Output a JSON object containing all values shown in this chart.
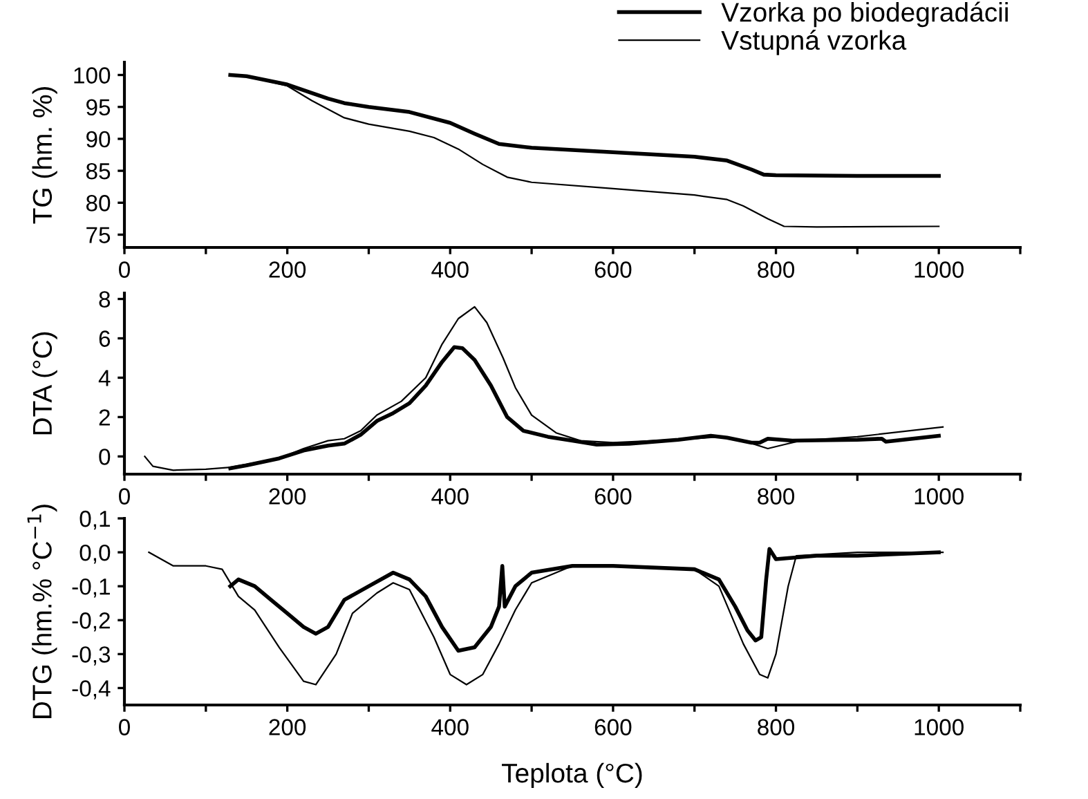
{
  "chart_data": [
    {
      "type": "line",
      "ylabel": "TG (hm. %)",
      "legend": "top right",
      "xlim": [
        0,
        1100
      ],
      "xticks": [
        0,
        {
          "value": 100,
          "label": null
        },
        200,
        {
          "value": 300,
          "label": null
        },
        400,
        {
          "value": 500,
          "label": null
        },
        600,
        {
          "value": 700,
          "label": null
        },
        800,
        {
          "value": 900,
          "label": null
        },
        1000,
        {
          "value": 1100,
          "label": null
        }
      ],
      "ylim": [
        73,
        102
      ],
      "yticks": [
        75,
        80,
        85,
        90,
        95,
        100
      ],
      "grid": false,
      "series": [
        {
          "name": "Vzorka po biodegradácii",
          "color": "#000000",
          "x": [
            130,
            150,
            200,
            250,
            270,
            300,
            350,
            400,
            430,
            460,
            500,
            600,
            700,
            740,
            770,
            785,
            800,
            900,
            1000
          ],
          "values": [
            100,
            99.8,
            98.5,
            96.3,
            95.6,
            95,
            94.2,
            92.5,
            90.8,
            89.2,
            88.6,
            87.9,
            87.2,
            86.6,
            85.2,
            84.4,
            84.3,
            84.2,
            84.2
          ]
        },
        {
          "name": "Vstupná vzorka",
          "color": "#000000",
          "x": [
            130,
            150,
            200,
            230,
            270,
            300,
            350,
            380,
            410,
            440,
            470,
            500,
            600,
            700,
            740,
            760,
            790,
            810,
            850,
            1000
          ],
          "values": [
            100,
            99.8,
            98.3,
            96,
            93.3,
            92.3,
            91.2,
            90.2,
            88.4,
            86,
            84,
            83.2,
            82.2,
            81.2,
            80.5,
            79.5,
            77.5,
            76.3,
            76.2,
            76.3
          ]
        }
      ]
    },
    {
      "type": "line",
      "ylabel": "DTA (°C)",
      "xlim": [
        0,
        1100
      ],
      "xticks": [
        0,
        {
          "value": 100,
          "label": null
        },
        200,
        {
          "value": 300,
          "label": null
        },
        400,
        {
          "value": 500,
          "label": null
        },
        600,
        {
          "value": 700,
          "label": null
        },
        800,
        {
          "value": 900,
          "label": null
        },
        1000,
        {
          "value": 1100,
          "label": null
        }
      ],
      "ylim": [
        -0.9,
        8.3
      ],
      "yticks": [
        0,
        2,
        4,
        6,
        8
      ],
      "grid": false,
      "series": [
        {
          "color": "#000000",
          "x": [
            130,
            150,
            190,
            220,
            250,
            270,
            290,
            310,
            330,
            350,
            370,
            390,
            405,
            415,
            430,
            450,
            470,
            490,
            520,
            550,
            580,
            620,
            680,
            720,
            740,
            770,
            780,
            790,
            820,
            900,
            930,
            935,
            1000
          ],
          "values": [
            -0.6,
            -0.45,
            -0.1,
            0.3,
            0.55,
            0.65,
            1.1,
            1.8,
            2.2,
            2.7,
            3.6,
            4.8,
            5.55,
            5.5,
            4.9,
            3.6,
            2.0,
            1.3,
            1.0,
            0.8,
            0.6,
            0.65,
            0.85,
            1.05,
            0.95,
            0.7,
            0.7,
            0.9,
            0.8,
            0.85,
            0.9,
            0.75,
            1.05
          ]
        },
        {
          "color": "#000000",
          "x": [
            25,
            35,
            60,
            100,
            130,
            190,
            220,
            250,
            270,
            290,
            310,
            340,
            370,
            390,
            410,
            430,
            445,
            465,
            480,
            500,
            530,
            560,
            600,
            700,
            730,
            760,
            790,
            810,
            830,
            900,
            1005
          ],
          "values": [
            0.0,
            -0.5,
            -0.7,
            -0.65,
            -0.55,
            -0.1,
            0.4,
            0.8,
            0.9,
            1.3,
            2.1,
            2.8,
            4.0,
            5.7,
            7.0,
            7.6,
            6.8,
            5.0,
            3.5,
            2.1,
            1.2,
            0.8,
            0.7,
            0.9,
            1.0,
            0.8,
            0.4,
            0.6,
            0.8,
            1.0,
            1.5
          ]
        }
      ]
    },
    {
      "type": "line",
      "xlabel": "Teplota (°C)",
      "ylabel": "DTG (hm.% °C$^{−1}$)",
      "xlim": [
        0,
        1100
      ],
      "xticks": [
        0,
        {
          "value": 100,
          "label": null
        },
        200,
        {
          "value": 300,
          "label": null
        },
        400,
        {
          "value": 500,
          "label": null
        },
        600,
        {
          "value": 700,
          "label": null
        },
        800,
        {
          "value": 900,
          "label": null
        },
        1000,
        {
          "value": 1100,
          "label": null
        }
      ],
      "ylim": [
        -0.45,
        0.1
      ],
      "yticks": [
        {
          "value": 0.1,
          "label": "0,1"
        },
        {
          "value": 0.0,
          "label": "0,0"
        },
        {
          "value": -0.1,
          "label": "-0,1"
        },
        {
          "value": -0.2,
          "label": "-0,2"
        },
        {
          "value": -0.3,
          "label": "-0,3"
        },
        {
          "value": -0.4,
          "label": "-0,4"
        }
      ],
      "grid": false,
      "series": [
        {
          "color": "#000000",
          "x": [
            130,
            140,
            160,
            180,
            200,
            220,
            235,
            250,
            270,
            300,
            330,
            350,
            370,
            390,
            410,
            430,
            450,
            460,
            464,
            467,
            480,
            500,
            550,
            600,
            700,
            730,
            750,
            765,
            775,
            782,
            788,
            792,
            800,
            850,
            900,
            1000
          ],
          "values": [
            -0.1,
            -0.08,
            -0.1,
            -0.14,
            -0.18,
            -0.22,
            -0.24,
            -0.22,
            -0.14,
            -0.1,
            -0.06,
            -0.08,
            -0.13,
            -0.22,
            -0.29,
            -0.28,
            -0.22,
            -0.16,
            -0.04,
            -0.16,
            -0.1,
            -0.06,
            -0.04,
            -0.04,
            -0.05,
            -0.08,
            -0.16,
            -0.23,
            -0.26,
            -0.25,
            -0.08,
            0.01,
            -0.02,
            -0.01,
            -0.01,
            0.0
          ]
        },
        {
          "color": "#000000",
          "x": [
            30,
            60,
            100,
            120,
            140,
            160,
            190,
            220,
            235,
            260,
            280,
            310,
            330,
            350,
            380,
            400,
            420,
            440,
            460,
            480,
            500,
            550,
            600,
            700,
            730,
            760,
            780,
            790,
            800,
            815,
            825,
            900,
            1005
          ],
          "values": [
            0.0,
            -0.04,
            -0.04,
            -0.05,
            -0.13,
            -0.17,
            -0.28,
            -0.38,
            -0.39,
            -0.3,
            -0.18,
            -0.12,
            -0.09,
            -0.11,
            -0.25,
            -0.36,
            -0.39,
            -0.36,
            -0.27,
            -0.17,
            -0.09,
            -0.04,
            -0.04,
            -0.05,
            -0.1,
            -0.27,
            -0.36,
            -0.37,
            -0.3,
            -0.1,
            -0.01,
            0.0,
            0.0
          ]
        }
      ]
    }
  ]
}
